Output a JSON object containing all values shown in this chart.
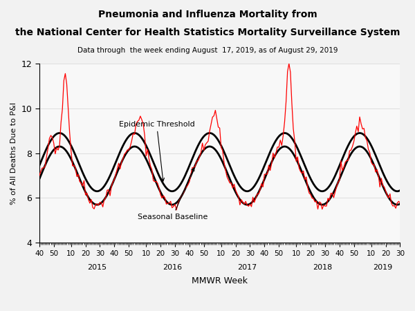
{
  "title_line1": "Pneumonia and Influenza Mortality from",
  "title_line2": "the National Center for Health Statistics Mortality Surveillance System",
  "subtitle": "Data through  the week ending August  17, 2019, as of August 29, 2019",
  "xlabel": "MMWR Week",
  "ylabel": "% of All Deaths Due to P&I",
  "ylim": [
    4,
    12
  ],
  "yticks": [
    4,
    6,
    8,
    10,
    12
  ],
  "background_color": "#f2f2f2",
  "plot_bg": "#f8f8f8",
  "years": [
    "2015",
    "2016",
    "2017",
    "2018",
    "2019"
  ],
  "epidemic_label": "Epidemic Threshold",
  "baseline_label": "Seasonal Baseline"
}
